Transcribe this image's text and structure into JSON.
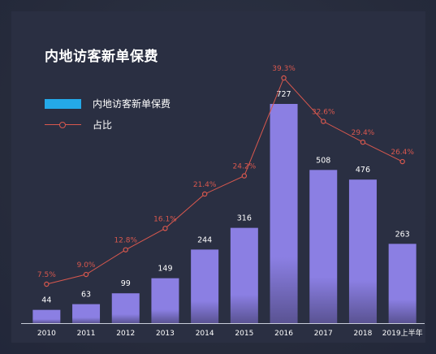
{
  "colors": {
    "bar": "#8b7fe3",
    "bar_bottom": "#5a5393",
    "line": "#d9584e",
    "legend_bar": "#24a9e8",
    "axis": "#c8ccd8",
    "text": "#ffffff"
  },
  "chart_data": {
    "type": "bar",
    "title": "内地访客新单保费",
    "legend_position": "top-left",
    "grid": false,
    "categories": [
      "2010",
      "2011",
      "2012",
      "2013",
      "2014",
      "2015",
      "2016",
      "2017",
      "2018",
      "2019上半年"
    ],
    "ylim": [
      0,
      800
    ],
    "y2lim": [
      0,
      45
    ],
    "series": [
      {
        "name": "内地访客新单保费",
        "type": "bar",
        "values": [
          44,
          63,
          99,
          149,
          244,
          316,
          727,
          508,
          476,
          263
        ],
        "labels": [
          "44",
          "63",
          "99",
          "149",
          "244",
          "316",
          "727",
          "508",
          "476",
          "263"
        ]
      },
      {
        "name": "占比",
        "type": "line",
        "values": [
          7.5,
          9.0,
          12.8,
          16.1,
          21.4,
          24.2,
          39.3,
          32.6,
          29.4,
          26.4
        ],
        "labels": [
          "7.5%",
          "9.0%",
          "12.8%",
          "16.1%",
          "21.4%",
          "24.2%",
          "39.3%",
          "32.6%",
          "29.4%",
          "26.4%"
        ]
      }
    ]
  }
}
